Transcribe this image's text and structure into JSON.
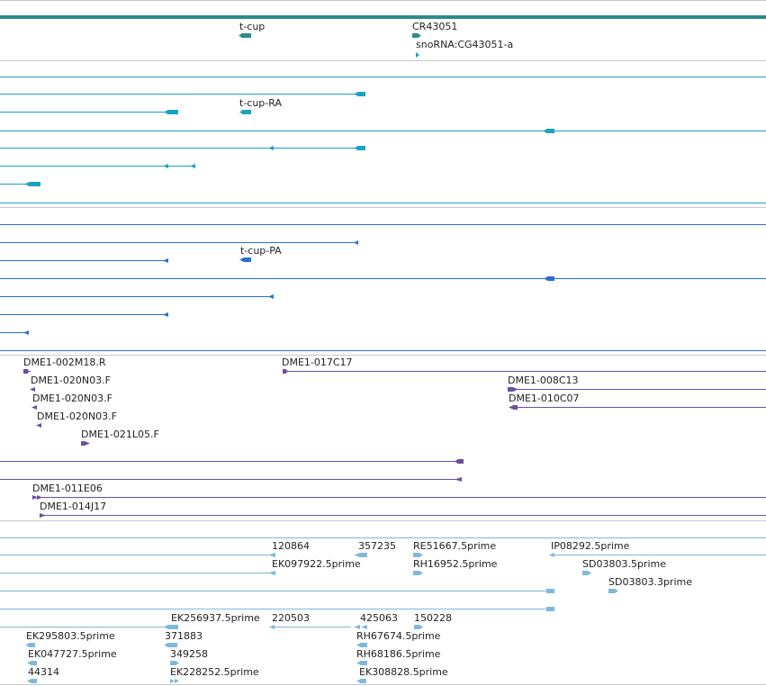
{
  "colors": {
    "gene": "#2e8b8b",
    "transcript": "#1aa3c2",
    "protein": "#2a6fd1",
    "clone": "#6a4fa3",
    "est": "#7fb8dc",
    "separator": "#c9c9c9"
  },
  "tracks": {
    "gene": {
      "features": [
        {
          "label": "t-cup"
        },
        {
          "label": "CR43051"
        },
        {
          "label": "snoRNA:CG43051-a"
        }
      ]
    },
    "transcripts": {
      "features": [
        {
          "label": "t-cup-RA"
        }
      ]
    },
    "proteins": {
      "features": [
        {
          "label": "t-cup-PA"
        }
      ]
    },
    "clones": {
      "features": [
        {
          "label": "DME1-002M18.R"
        },
        {
          "label": "DME1-017C17"
        },
        {
          "label": "DME1-020N03.F"
        },
        {
          "label": "DME1-008C13"
        },
        {
          "label": "DME1-020N03.F"
        },
        {
          "label": "DME1-010C07"
        },
        {
          "label": "DME1-020N03.F"
        },
        {
          "label": "DME1-021L05.F"
        },
        {
          "label": "DME1-011E06"
        },
        {
          "label": "DME1-014J17"
        }
      ]
    },
    "ests": {
      "features": [
        {
          "label": "120864"
        },
        {
          "label": "357235"
        },
        {
          "label": "RE51667.5prime"
        },
        {
          "label": "IP08292.5prime"
        },
        {
          "label": "EK097922.5prime"
        },
        {
          "label": "RH16952.5prime"
        },
        {
          "label": "SD03803.5prime"
        },
        {
          "label": "SD03803.3prime"
        },
        {
          "label": "EK256937.5prime"
        },
        {
          "label": "220503"
        },
        {
          "label": "425063"
        },
        {
          "label": "150228"
        },
        {
          "label": "EK295803.5prime"
        },
        {
          "label": "371883"
        },
        {
          "label": "RH67674.5prime"
        },
        {
          "label": "EK047727.5prime"
        },
        {
          "label": "349258"
        },
        {
          "label": "RH68186.5prime"
        },
        {
          "label": "44314"
        },
        {
          "label": "EK228252.5prime"
        },
        {
          "label": "EK308828.5prime"
        }
      ]
    }
  }
}
